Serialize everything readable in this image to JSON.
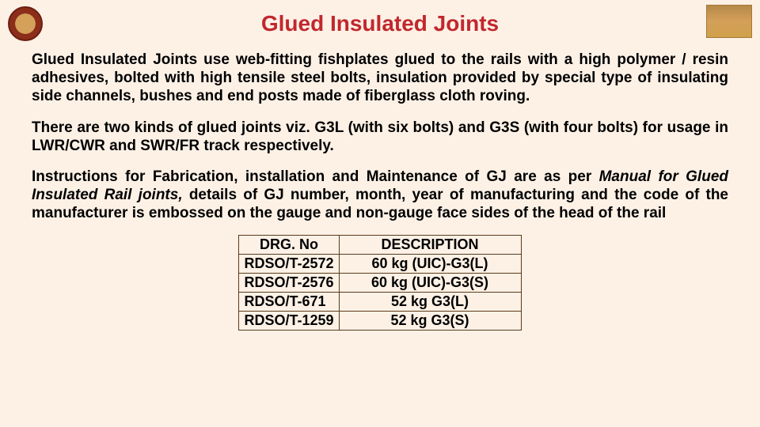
{
  "title": "Glued Insulated Joints",
  "paragraphs": {
    "p1": "Glued Insulated Joints use web-fitting fishplates glued to the rails with a high polymer / resin adhesives, bolted with high tensile steel bolts, insulation provided by special type of insulating side channels, bushes and end posts made of fiberglass cloth roving.",
    "p2": "There are two kinds of glued joints viz. G3L (with six bolts) and G3S (with four bolts) for usage in LWR/CWR and SWR/FR track respectively.",
    "p3_a": "Instructions for Fabrication, installation and Maintenance of GJ are as per ",
    "p3_italic": "Manual for Glued Insulated Rail joints,",
    "p3_b": " details of GJ number, month, year of manufacturing and the code of the manufacturer is embossed on the gauge and non-gauge face sides of the head of the rail"
  },
  "table": {
    "columns": [
      "DRG. No",
      "DESCRIPTION"
    ],
    "rows": [
      [
        "RDSO/T-2572",
        "60 kg (UIC)-G3(L)"
      ],
      [
        "RDSO/T-2576",
        "60 kg (UIC)-G3(S)"
      ],
      [
        "RDSO/T-671",
        "52 kg G3(L)"
      ],
      [
        "RDSO/T-1259",
        "52 kg G3(S)"
      ]
    ],
    "col_align": [
      "left",
      "center"
    ],
    "border_color": "#5a3a1a",
    "font_size": 18
  },
  "colors": {
    "background": "#fdf1e6",
    "title": "#c1272d",
    "body_text": "#000000",
    "table_border": "#5a3a1a"
  },
  "typography": {
    "title_fontsize": 28,
    "body_fontsize": 19,
    "font_family": "Arial",
    "title_weight": "bold",
    "body_weight": "bold"
  },
  "icons": {
    "left_logo": "indian-railways-emblem",
    "right_logo": "iriset-emblem"
  }
}
